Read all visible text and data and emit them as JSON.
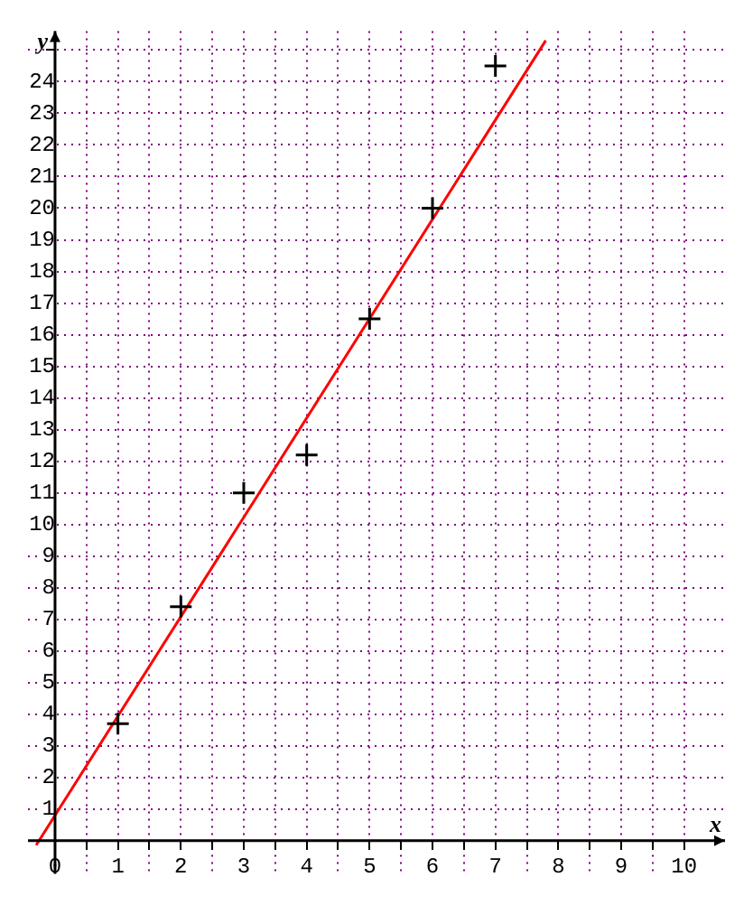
{
  "chart_data": {
    "type": "scatter",
    "xlabel": "x",
    "ylabel": "y",
    "xlim": [
      -0.43,
      10.65
    ],
    "ylim": [
      -1.05,
      25.6
    ],
    "xticks": [
      0,
      {
        "value": 0.5,
        "label": null
      },
      1,
      {
        "value": 1.5,
        "label": null
      },
      2,
      {
        "value": 2.5,
        "label": null
      },
      3,
      {
        "value": 3.5,
        "label": null
      },
      4,
      {
        "value": 4.5,
        "label": null
      },
      5,
      {
        "value": 5.5,
        "label": null
      },
      6,
      {
        "value": 6.5,
        "label": null
      },
      7,
      {
        "value": 7.5,
        "label": null
      },
      8,
      {
        "value": 8.5,
        "label": null
      },
      9,
      {
        "value": 9.5,
        "label": null
      },
      10
    ],
    "yticks": [
      1,
      2,
      3,
      4,
      5,
      6,
      7,
      8,
      9,
      10,
      11,
      12,
      13,
      14,
      15,
      16,
      17,
      18,
      19,
      20,
      21,
      22,
      23,
      24,
      {
        "value": 25,
        "label": null
      }
    ],
    "grid": true,
    "legend": false,
    "series": [
      {
        "type": "scatter",
        "color": "#000000",
        "marker": "cross",
        "x": [
          1,
          2,
          3,
          4,
          5,
          6,
          7
        ],
        "values": [
          3.7,
          7.4,
          11,
          12.2,
          16.5,
          20,
          24.5
        ]
      },
      {
        "type": "line",
        "color": "#ff0000",
        "marker": "none",
        "line_style": "solid",
        "x": [
          -0.3,
          7.8
        ],
        "values": [
          -0.14,
          25.3
        ]
      }
    ]
  }
}
